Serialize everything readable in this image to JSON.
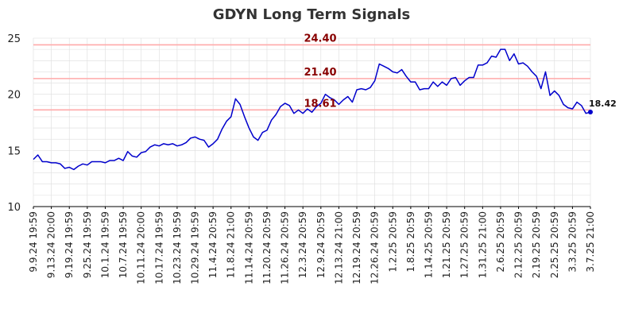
{
  "chart_data": {
    "type": "line",
    "title": "GDYN Long Term Signals",
    "xlabel": "",
    "ylabel": "",
    "ylim": [
      10,
      25
    ],
    "yticks": [
      10,
      15,
      20,
      25
    ],
    "grid": true,
    "x_tick_labels": [
      "9.9.24 19:59",
      "9.13.24 20:00",
      "9.19.24 19:59",
      "9.25.24 19:59",
      "10.1.24 19:59",
      "10.7.24 19:59",
      "10.11.24 20:00",
      "10.17.24 19:59",
      "10.23.24 19:59",
      "10.29.24 19:59",
      "11.4.24 20:59",
      "11.8.24 21:00",
      "11.14.24 20:59",
      "11.20.24 20:59",
      "11.26.24 20:59",
      "12.3.24 20:59",
      "12.9.24 20:59",
      "12.13.24 21:00",
      "12.19.24 20:59",
      "12.26.24 20:59",
      "1.2.25 20:59",
      "1.8.25 20:59",
      "1.14.25 20:59",
      "1.21.25 20:59",
      "1.27.25 20:59",
      "1.31.25 21:00",
      "2.6.25 20:59",
      "2.12.25 20:59",
      "2.19.25 20:59",
      "2.25.25 20:59",
      "3.3.25 20:59",
      "3.7.25 21:00"
    ],
    "series": [
      {
        "color": "#0000cc",
        "values": [
          14.2,
          14.6,
          14.0,
          14.0,
          13.9,
          13.9,
          13.8,
          13.4,
          13.5,
          13.3,
          13.6,
          13.8,
          13.7,
          14.0,
          14.0,
          14.0,
          13.9,
          14.1,
          14.1,
          14.3,
          14.1,
          14.9,
          14.5,
          14.4,
          14.8,
          14.9,
          15.3,
          15.5,
          15.4,
          15.6,
          15.5,
          15.6,
          15.4,
          15.5,
          15.7,
          16.1,
          16.2,
          16.0,
          15.9,
          15.3,
          15.6,
          16.0,
          16.9,
          17.6,
          18.0,
          19.6,
          19.1,
          18.0,
          17.0,
          16.2,
          15.9,
          16.6,
          16.8,
          17.7,
          18.2,
          18.9,
          19.2,
          19.0,
          18.3,
          18.6,
          18.3,
          18.7,
          18.4,
          18.9,
          19.2,
          20.0,
          19.7,
          19.5,
          19.1,
          19.5,
          19.8,
          19.3,
          20.4,
          20.5,
          20.4,
          20.6,
          21.2,
          22.7,
          22.5,
          22.3,
          22.0,
          21.9,
          22.2,
          21.6,
          21.1,
          21.1,
          20.4,
          20.5,
          20.5,
          21.1,
          20.7,
          21.1,
          20.8,
          21.4,
          21.5,
          20.8,
          21.2,
          21.5,
          21.5,
          22.6,
          22.6,
          22.8,
          23.4,
          23.3,
          24.0,
          24.0,
          23.0,
          23.6,
          22.7,
          22.8,
          22.5,
          22.0,
          21.6,
          20.5,
          22.0,
          19.9,
          20.3,
          19.9,
          19.1,
          18.8,
          18.7,
          19.3,
          19.0,
          18.3,
          18.42
        ]
      }
    ],
    "signal_lines": [
      {
        "value": 24.4,
        "label": "24.40",
        "color": "#ffaaaa",
        "label_color": "#880000"
      },
      {
        "value": 21.4,
        "label": "21.40",
        "color": "#ffaaaa",
        "label_color": "#880000"
      },
      {
        "value": 18.61,
        "label": "18.61",
        "color": "#ffaaaa",
        "label_color": "#880000"
      }
    ],
    "last_value_label": "18.42",
    "colors": {
      "grid": "#dddddd",
      "axis": "#000000",
      "tick_text": "#222222",
      "last_value_text": "#111111"
    }
  }
}
